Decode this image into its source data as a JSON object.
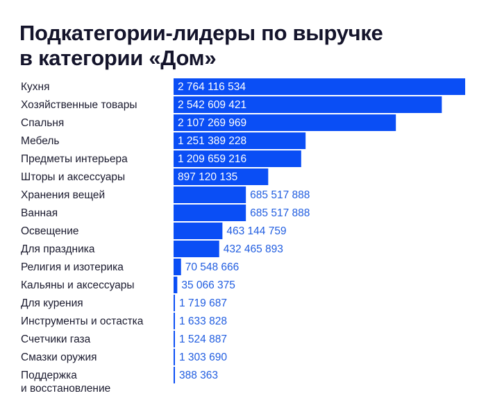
{
  "title_lines": [
    "Подкатегории-лидеры по выручке",
    "в категории «Дом»"
  ],
  "colors": {
    "bar": "#0a4ef5",
    "value_inside": "#ffffff",
    "value_outside": "#1f5ce0",
    "label": "#1a1a2e"
  },
  "chart_data": {
    "type": "bar",
    "orientation": "horizontal",
    "title": "Подкатегории-лидеры по выручке в категории «Дом»",
    "categories": [
      [
        "Кухня"
      ],
      [
        "Хозяйственные товары"
      ],
      [
        "Спальня"
      ],
      [
        "Мебель"
      ],
      [
        "Предметы интерьера"
      ],
      [
        "Шторы и аксессуары"
      ],
      [
        "Хранения вещей"
      ],
      [
        "Ванная"
      ],
      [
        "Освещение"
      ],
      [
        "Для праздника"
      ],
      [
        "Религия и изотерика"
      ],
      [
        "Кальяны и аксессуары"
      ],
      [
        "Для курения"
      ],
      [
        "Инструменты и остастка"
      ],
      [
        "Счетчики газа"
      ],
      [
        "Смазки оружия"
      ],
      [
        "Поддержка",
        "и восстановление"
      ]
    ],
    "values": [
      2764116534,
      2542609421,
      2107269969,
      1251389228,
      1209659216,
      897120135,
      685517888,
      685517888,
      463144759,
      432465893,
      70548666,
      35066375,
      1719687,
      1633828,
      1524887,
      1303690,
      388363
    ],
    "value_labels": [
      "2 764 116 534",
      "2 542 609 421",
      "2 107 269 969",
      "1 251 389 228",
      "1 209 659 216",
      "897 120 135",
      "685 517 888",
      "685 517 888",
      "463 144 759",
      "432 465 893",
      "70 548 666",
      "35 066 375",
      "1 719 687",
      "1 633 828",
      "1 524 887",
      "1 303 690",
      "388 363"
    ],
    "data_labels": "inside bar when it fits, otherwise right of bar",
    "grid": false,
    "legend": "none"
  }
}
